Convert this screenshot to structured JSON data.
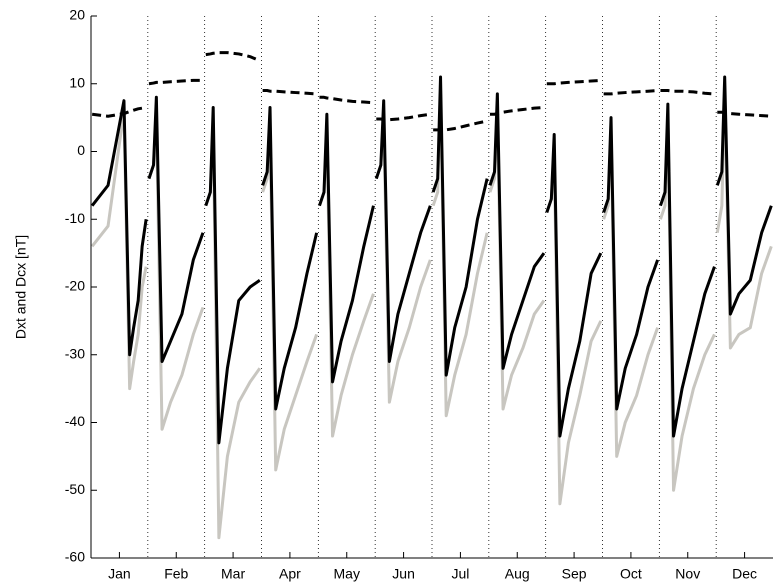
{
  "chart_data": {
    "type": "line",
    "y_label": "Dxt and Dcx [nT]",
    "xlim": [
      0,
      12
    ],
    "xticks": [
      {
        "value": 0.5,
        "label": "Jan"
      },
      {
        "value": 1.5,
        "label": "Feb"
      },
      {
        "value": 2.5,
        "label": "Mar"
      },
      {
        "value": 3.5,
        "label": "Apr"
      },
      {
        "value": 4.5,
        "label": "May"
      },
      {
        "value": 5.5,
        "label": "Jun"
      },
      {
        "value": 6.5,
        "label": "Jul"
      },
      {
        "value": 7.5,
        "label": "Aug"
      },
      {
        "value": 8.5,
        "label": "Sep"
      },
      {
        "value": 9.5,
        "label": "Oct"
      },
      {
        "value": 10.5,
        "label": "Nov"
      },
      {
        "value": 11.5,
        "label": "Dec"
      }
    ],
    "xgrid": [
      1,
      2,
      3,
      4,
      5,
      6,
      7,
      8,
      9,
      10,
      11
    ],
    "ylim": [
      -60,
      20
    ],
    "yticks": [
      -60,
      -50,
      -40,
      -30,
      -20,
      -10,
      0,
      10,
      20
    ],
    "x": [
      0.02,
      0.3,
      0.58,
      0.68,
      0.75,
      0.83,
      0.9,
      0.97,
      0.99,
      1.02,
      1.1,
      1.15,
      1.25,
      1.4,
      1.6,
      1.8,
      1.97,
      1.99,
      2.02,
      2.1,
      2.15,
      2.25,
      2.4,
      2.6,
      2.8,
      2.97,
      2.99,
      3.02,
      3.1,
      3.15,
      3.25,
      3.4,
      3.6,
      3.8,
      3.97,
      3.99,
      4.02,
      4.1,
      4.15,
      4.25,
      4.4,
      4.6,
      4.8,
      4.97,
      4.99,
      5.02,
      5.1,
      5.15,
      5.25,
      5.4,
      5.6,
      5.8,
      5.97,
      5.99,
      6.02,
      6.1,
      6.15,
      6.25,
      6.4,
      6.6,
      6.8,
      6.97,
      6.99,
      7.02,
      7.1,
      7.15,
      7.25,
      7.4,
      7.6,
      7.8,
      7.97,
      7.99,
      8.02,
      8.1,
      8.15,
      8.25,
      8.4,
      8.6,
      8.8,
      8.97,
      8.99,
      9.02,
      9.1,
      9.15,
      9.25,
      9.4,
      9.6,
      9.8,
      9.97,
      9.99,
      10.02,
      10.1,
      10.15,
      10.25,
      10.4,
      10.6,
      10.8,
      10.97,
      10.99,
      11.02,
      11.1,
      11.15,
      11.25,
      11.4,
      11.6,
      11.8,
      11.97
    ],
    "series": [
      {
        "color": "#c8c6c0",
        "dash": "solid",
        "values": [
          -14,
          -11,
          6,
          -35,
          -31,
          -27,
          -20,
          -17,
          null,
          -4,
          -2,
          5,
          -41,
          -37,
          -33,
          -27,
          -23,
          null,
          -8,
          -6,
          4,
          -57,
          -45,
          -37,
          -34,
          -32,
          null,
          -6,
          -4,
          4,
          -47,
          -41,
          -36,
          -31,
          -27,
          null,
          -8,
          -6,
          3,
          -42,
          -36,
          -30,
          -25,
          -21,
          null,
          -4,
          -2,
          5,
          -37,
          -31,
          -26,
          -20,
          -16,
          null,
          -8,
          -6,
          9,
          -39,
          -33,
          -27,
          -18,
          -12,
          null,
          -6,
          -4,
          6,
          -38,
          -33,
          -29,
          -24,
          -22,
          null,
          -9,
          -7,
          0,
          -52,
          -43,
          -36,
          -28,
          -25,
          null,
          -10,
          -8,
          3,
          -45,
          -40,
          -36,
          -30,
          -26,
          null,
          -10,
          -8,
          5,
          -50,
          -42,
          -35,
          -30,
          -27,
          null,
          -12,
          -8,
          9,
          -29,
          -27,
          -26,
          -18,
          -14
        ]
      },
      {
        "color": "#000000",
        "dash": "solid",
        "values": [
          -8,
          -5,
          7.5,
          -30,
          -26,
          -22,
          -14,
          -10,
          null,
          -4,
          -2,
          8,
          -31,
          -28,
          -24,
          -16,
          -12,
          null,
          -8,
          -6,
          6.5,
          -43,
          -32,
          -22,
          -20,
          -19,
          null,
          -5,
          -3,
          6.5,
          -38,
          -32,
          -26,
          -18,
          -12,
          null,
          -8,
          -6,
          5.5,
          -34,
          -28,
          -22,
          -14,
          -8,
          null,
          -4,
          -2,
          7.5,
          -31,
          -24,
          -18,
          -12,
          -8,
          null,
          -6,
          -4,
          11,
          -33,
          -26,
          -20,
          -10,
          -4,
          null,
          -5,
          -3,
          8.5,
          -32,
          -27,
          -22,
          -17,
          -15,
          null,
          -9,
          -7,
          2.5,
          -42,
          -35,
          -28,
          -18,
          -15,
          null,
          -9,
          -7,
          5,
          -38,
          -32,
          -27,
          -20,
          -16,
          null,
          -8,
          -6,
          7,
          -42,
          -35,
          -28,
          -21,
          -17,
          null,
          -5,
          -3,
          11,
          -24,
          -21,
          -19,
          -12,
          -8
        ]
      },
      {
        "color": "#000000",
        "dash": "dashed",
        "values": [
          5.5,
          5.2,
          5.6,
          5.9,
          6.1,
          6.3,
          6.4,
          6.5,
          null,
          10,
          10.1,
          10.2,
          10.2,
          10.3,
          10.4,
          10.5,
          10.5,
          null,
          14.3,
          14.4,
          14.5,
          14.6,
          14.6,
          14.4,
          14,
          13.4,
          null,
          9,
          9,
          8.9,
          8.9,
          8.8,
          8.7,
          8.6,
          8.5,
          null,
          8,
          8,
          7.9,
          7.8,
          7.6,
          7.4,
          7.3,
          7.2,
          null,
          4.8,
          4.8,
          4.7,
          4.7,
          4.8,
          5,
          5.3,
          5.5,
          null,
          3.2,
          3.2,
          3.1,
          3.2,
          3.4,
          3.8,
          4.2,
          4.5,
          null,
          5.5,
          5.5,
          5.6,
          5.8,
          6,
          6.2,
          6.4,
          6.5,
          null,
          10,
          10,
          10,
          10.1,
          10.2,
          10.3,
          10.4,
          10.5,
          null,
          8.5,
          8.5,
          8.5,
          8.6,
          8.7,
          8.8,
          8.9,
          9,
          null,
          9,
          9,
          9,
          8.9,
          8.9,
          8.8,
          8.6,
          8.5,
          null,
          5.8,
          5.8,
          5.7,
          5.6,
          5.5,
          5.4,
          5.3,
          5.2
        ]
      }
    ]
  }
}
